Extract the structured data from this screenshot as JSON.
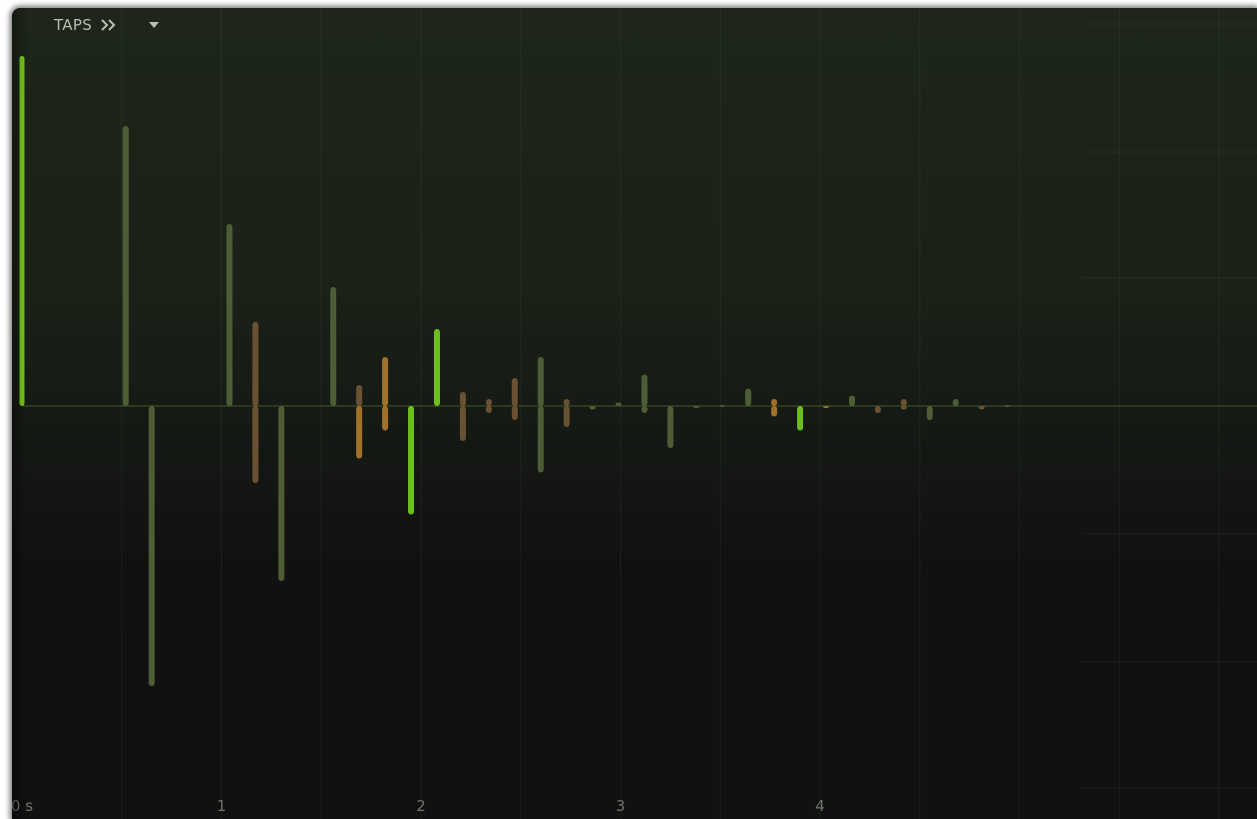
{
  "header": {
    "label": "TAPS",
    "chevron_icon": "double-chevron-right-icon",
    "dropdown_icon": "triangle-down-icon"
  },
  "chart_data": {
    "type": "bar",
    "xlabel": "",
    "ylabel": "",
    "xlim": [
      -0.05,
      6.19
    ],
    "ylim": [
      -1,
      1
    ],
    "x_ticks": [
      {
        "value": 0,
        "label": "0 s"
      },
      {
        "value": 1,
        "label": "1"
      },
      {
        "value": 2,
        "label": "2"
      },
      {
        "value": 3,
        "label": "3"
      },
      {
        "value": 4,
        "label": "4"
      }
    ],
    "colors": {
      "main": "#7bd11e",
      "green_dim": "#4e5d35",
      "brown": "#6a5132",
      "orange": "#a2712b",
      "bright": "#6dbf1d"
    },
    "series": [
      {
        "x": 0.0,
        "y": 1.0,
        "tone": "main"
      },
      {
        "x": 0.52,
        "y": 0.8,
        "tone": "green_dim"
      },
      {
        "x": 0.65,
        "y": -0.8,
        "tone": "green_dim"
      },
      {
        "x": 1.04,
        "y": 0.52,
        "tone": "green_dim"
      },
      {
        "x": 1.17,
        "y": 0.24,
        "tone": "brown"
      },
      {
        "x": 1.17,
        "y": -0.22,
        "tone": "brown"
      },
      {
        "x": 1.3,
        "y": -0.5,
        "tone": "green_dim"
      },
      {
        "x": 1.56,
        "y": 0.34,
        "tone": "green_dim"
      },
      {
        "x": 1.69,
        "y": 0.06,
        "tone": "brown"
      },
      {
        "x": 1.69,
        "y": -0.15,
        "tone": "orange"
      },
      {
        "x": 1.82,
        "y": 0.14,
        "tone": "orange"
      },
      {
        "x": 1.82,
        "y": -0.07,
        "tone": "orange"
      },
      {
        "x": 1.95,
        "y": -0.31,
        "tone": "bright"
      },
      {
        "x": 2.08,
        "y": 0.22,
        "tone": "bright"
      },
      {
        "x": 2.21,
        "y": 0.04,
        "tone": "brown"
      },
      {
        "x": 2.21,
        "y": -0.1,
        "tone": "brown"
      },
      {
        "x": 2.34,
        "y": 0.02,
        "tone": "brown"
      },
      {
        "x": 2.34,
        "y": -0.02,
        "tone": "brown"
      },
      {
        "x": 2.47,
        "y": 0.08,
        "tone": "brown"
      },
      {
        "x": 2.47,
        "y": -0.04,
        "tone": "brown"
      },
      {
        "x": 2.6,
        "y": 0.14,
        "tone": "green_dim"
      },
      {
        "x": 2.6,
        "y": -0.19,
        "tone": "green_dim"
      },
      {
        "x": 2.73,
        "y": 0.02,
        "tone": "brown"
      },
      {
        "x": 2.73,
        "y": -0.06,
        "tone": "brown"
      },
      {
        "x": 2.86,
        "y": -0.01,
        "tone": "green_dim"
      },
      {
        "x": 2.99,
        "y": 0.01,
        "tone": "green_dim"
      },
      {
        "x": 3.12,
        "y": 0.09,
        "tone": "green_dim"
      },
      {
        "x": 3.12,
        "y": -0.02,
        "tone": "green_dim"
      },
      {
        "x": 3.25,
        "y": -0.12,
        "tone": "green_dim"
      },
      {
        "x": 3.38,
        "y": -0.005,
        "tone": "green_dim"
      },
      {
        "x": 3.51,
        "y": 0.003,
        "tone": "green_dim"
      },
      {
        "x": 3.64,
        "y": 0.05,
        "tone": "green_dim"
      },
      {
        "x": 3.77,
        "y": 0.02,
        "tone": "orange"
      },
      {
        "x": 3.77,
        "y": -0.03,
        "tone": "orange"
      },
      {
        "x": 3.9,
        "y": -0.07,
        "tone": "bright"
      },
      {
        "x": 4.03,
        "y": -0.003,
        "tone": "orange"
      },
      {
        "x": 4.16,
        "y": 0.03,
        "tone": "green_dim"
      },
      {
        "x": 4.29,
        "y": -0.02,
        "tone": "brown"
      },
      {
        "x": 4.42,
        "y": 0.02,
        "tone": "brown"
      },
      {
        "x": 4.42,
        "y": -0.01,
        "tone": "brown"
      },
      {
        "x": 4.55,
        "y": -0.04,
        "tone": "green_dim"
      },
      {
        "x": 4.68,
        "y": 0.02,
        "tone": "green_dim"
      },
      {
        "x": 4.81,
        "y": -0.01,
        "tone": "brown"
      },
      {
        "x": 4.94,
        "y": 0.003,
        "tone": "brown"
      }
    ]
  }
}
